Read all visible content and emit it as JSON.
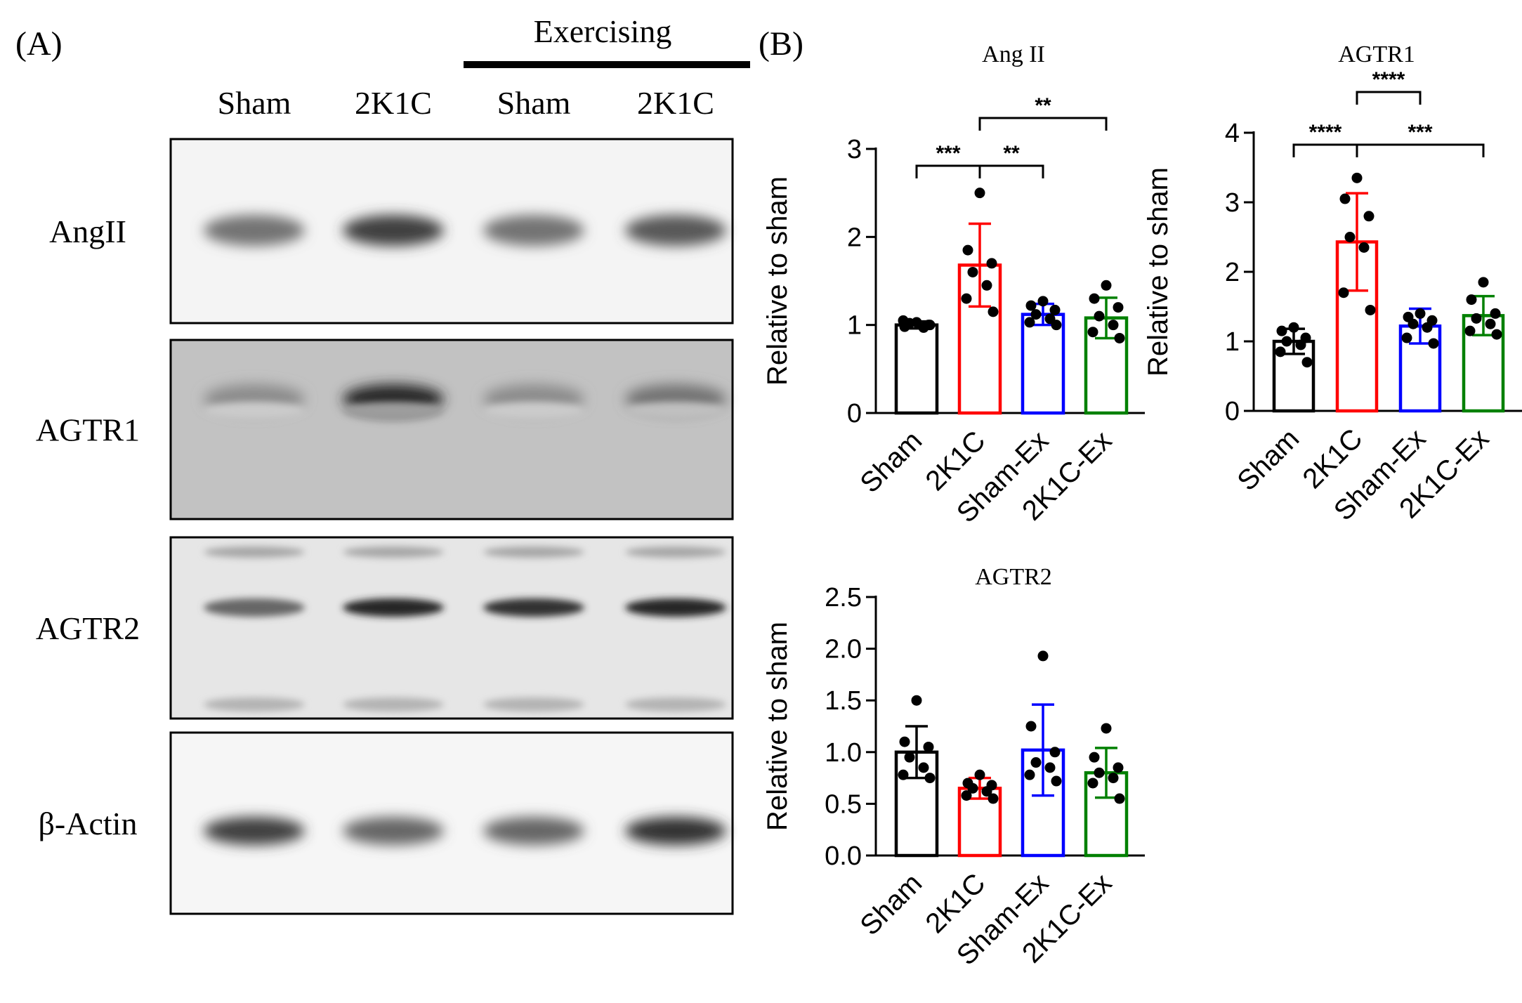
{
  "panel_a": {
    "label": "(A)",
    "exercising_label": "Exercising",
    "lanes": [
      "Sham",
      "2K1C",
      "Sham",
      "2K1C"
    ],
    "blots": [
      {
        "name": "AngII",
        "band_intensity": [
          0.55,
          0.75,
          0.55,
          0.65
        ]
      },
      {
        "name": "AGTR1",
        "band_intensity": [
          0.45,
          0.85,
          0.45,
          0.55
        ]
      },
      {
        "name": "AGTR2",
        "band_intensity": [
          0.6,
          0.85,
          0.8,
          0.85
        ]
      },
      {
        "name": "β-Actin",
        "band_intensity": [
          0.75,
          0.6,
          0.6,
          0.8
        ]
      }
    ]
  },
  "panel_b": {
    "label": "(B)"
  },
  "colors": {
    "Sham": "#000000",
    "2K1C": "#ff0000",
    "Sham-Ex": "#0000ff",
    "2K1C-Ex": "#008000"
  },
  "chart_data": [
    {
      "type": "bar",
      "title": "Ang II",
      "ylabel": "Relative to sham",
      "ylim": [
        0,
        3
      ],
      "yticks": [
        "0",
        "1",
        "2",
        "3"
      ],
      "categories": [
        "Sham",
        "2K1C",
        "Sham-Ex",
        "2K1C-Ex"
      ],
      "values": [
        1.0,
        1.68,
        1.12,
        1.08
      ],
      "errors": [
        0.04,
        0.47,
        0.12,
        0.23
      ],
      "points": [
        [
          1.03,
          0.98,
          1.0,
          1.02,
          0.97,
          1.05,
          1.0
        ],
        [
          2.5,
          1.85,
          1.7,
          1.6,
          1.45,
          1.3,
          1.15
        ],
        [
          1.27,
          1.22,
          1.17,
          1.12,
          1.07,
          1.03,
          1.0
        ],
        [
          1.45,
          1.3,
          1.2,
          1.1,
          1.0,
          0.92,
          0.85
        ]
      ],
      "significance": [
        {
          "from": 0,
          "to": 1,
          "label": "***"
        },
        {
          "from": 1,
          "to": 2,
          "label": "**"
        },
        {
          "from": 1,
          "to": 3,
          "label": "**"
        }
      ]
    },
    {
      "type": "bar",
      "title": "AGTR1",
      "ylabel": "Relative to sham",
      "ylim": [
        0,
        4
      ],
      "yticks": [
        "0",
        "1",
        "2",
        "3",
        "4"
      ],
      "categories": [
        "Sham",
        "2K1C",
        "Sham-Ex",
        "2K1C-Ex"
      ],
      "values": [
        1.0,
        2.43,
        1.22,
        1.37
      ],
      "errors": [
        0.18,
        0.7,
        0.25,
        0.28
      ],
      "points": [
        [
          1.2,
          1.15,
          1.05,
          1.0,
          0.95,
          0.85,
          0.7
        ],
        [
          3.35,
          3.05,
          2.8,
          2.5,
          2.35,
          1.7,
          1.45
        ],
        [
          1.4,
          1.35,
          1.3,
          1.25,
          1.2,
          1.05,
          0.97
        ],
        [
          1.85,
          1.6,
          1.4,
          1.33,
          1.25,
          1.15,
          1.1
        ]
      ],
      "significance": [
        {
          "from": 0,
          "to": 1,
          "label": "****"
        },
        {
          "from": 1,
          "to": 2,
          "label": "****"
        },
        {
          "from": 1,
          "to": 3,
          "label": "***"
        }
      ]
    },
    {
      "type": "bar",
      "title": "AGTR2",
      "ylabel": "Relative to sham",
      "ylim": [
        0,
        2.5
      ],
      "yticks": [
        "0.0",
        "0.5",
        "1.0",
        "1.5",
        "2.0",
        "2.5"
      ],
      "categories": [
        "Sham",
        "2K1C",
        "Sham-Ex",
        "2K1C-Ex"
      ],
      "values": [
        1.0,
        0.65,
        1.02,
        0.8
      ],
      "errors": [
        0.25,
        0.1,
        0.44,
        0.24
      ],
      "points": [
        [
          1.5,
          1.1,
          1.05,
          0.95,
          0.85,
          0.78,
          0.75
        ],
        [
          0.78,
          0.7,
          0.68,
          0.65,
          0.62,
          0.58,
          0.55
        ],
        [
          1.93,
          1.25,
          1.0,
          0.9,
          0.85,
          0.78,
          0.72
        ],
        [
          1.23,
          0.95,
          0.85,
          0.8,
          0.75,
          0.7,
          0.55
        ]
      ],
      "significance": []
    }
  ]
}
